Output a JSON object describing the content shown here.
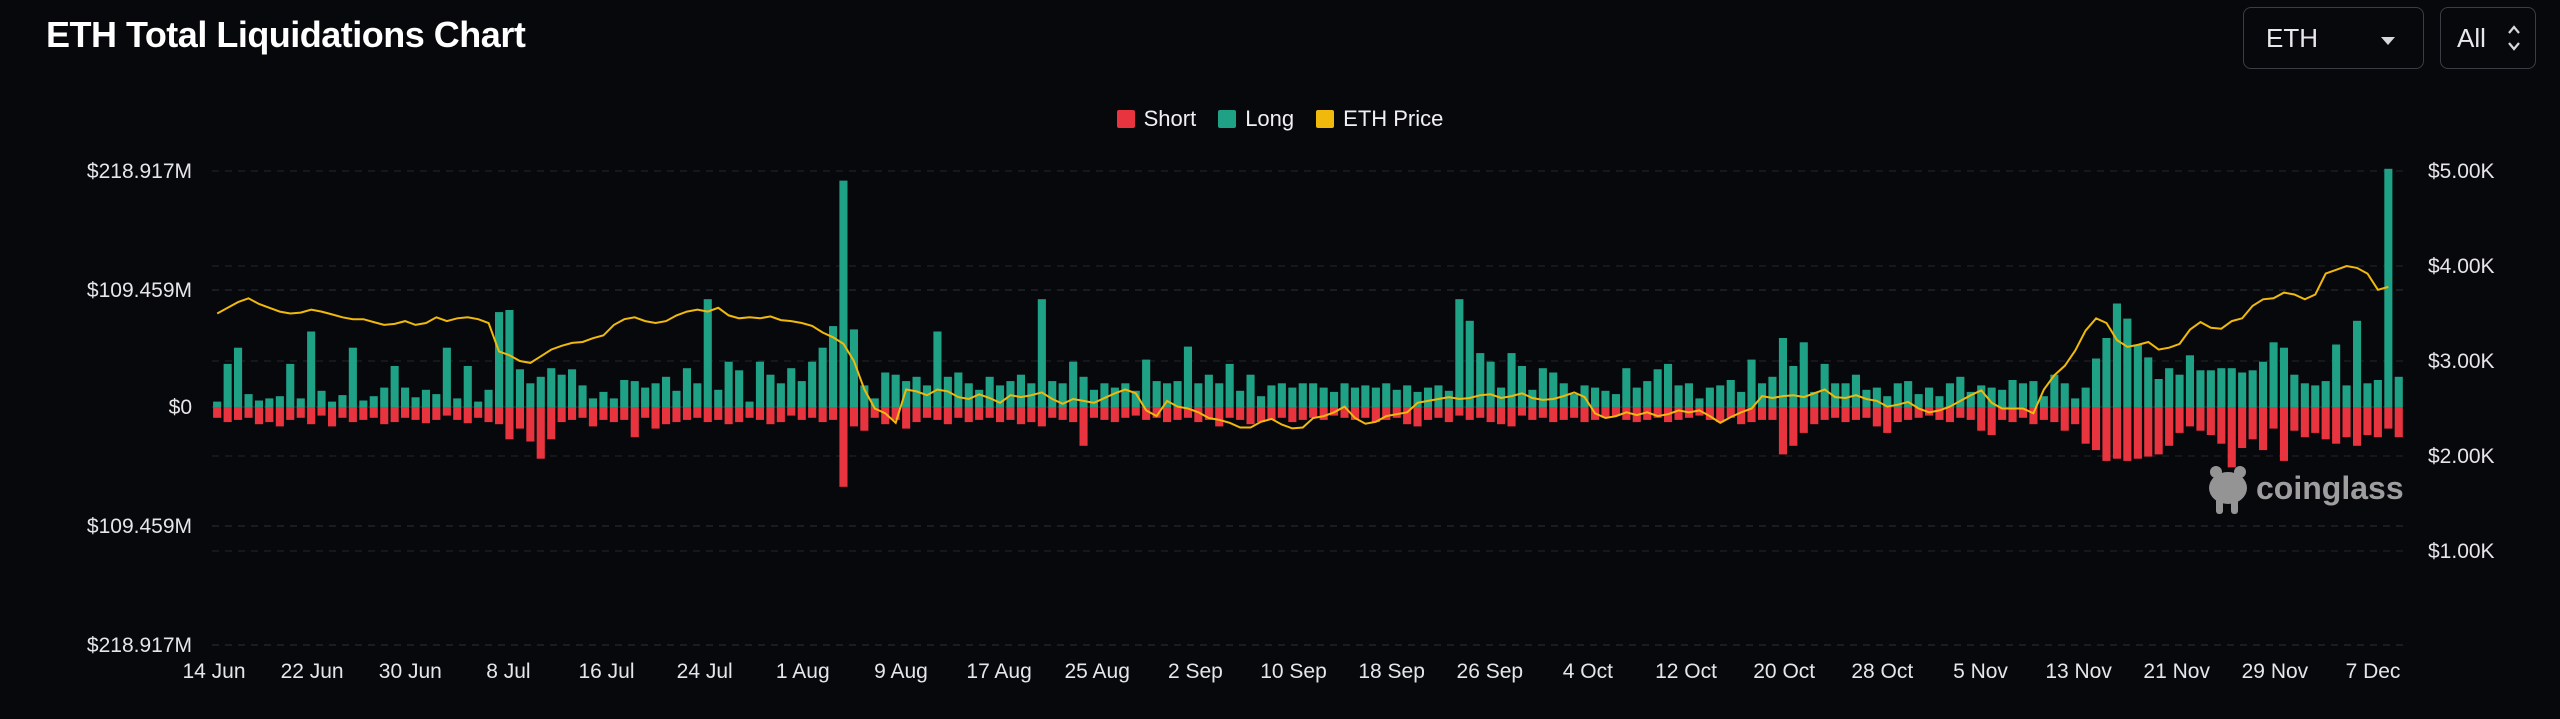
{
  "header": {
    "title": "ETH Total Liquidations Chart"
  },
  "controls": {
    "asset_select": {
      "value": "ETH",
      "icon": "chevron-down-icon"
    },
    "range_select": {
      "value": "All",
      "icon": "up-down-chevron-icon"
    }
  },
  "watermark": {
    "text": "coinglass",
    "icon": "coinglass-logo-icon"
  },
  "chart_data": {
    "type": "bar",
    "title": "ETH Total Liquidations Chart",
    "legend": [
      {
        "name": "Short",
        "color": "#e8343f"
      },
      {
        "name": "Long",
        "color": "#1fa186"
      },
      {
        "name": "ETH Price",
        "color": "#f0b90b"
      }
    ],
    "legend_position": "top-center",
    "grid": true,
    "x_tick_labels": [
      "14 Jun",
      "22 Jun",
      "30 Jun",
      "8 Jul",
      "16 Jul",
      "24 Jul",
      "1 Aug",
      "9 Aug",
      "17 Aug",
      "25 Aug",
      "2 Sep",
      "10 Sep",
      "18 Sep",
      "26 Sep",
      "4 Oct",
      "12 Oct",
      "20 Oct",
      "28 Oct",
      "5 Nov",
      "13 Nov",
      "21 Nov",
      "29 Nov",
      "7 Dec"
    ],
    "y_left_tick_labels": [
      "$218.917M",
      "$109.459M",
      "$0",
      "$109.459M",
      "$218.917M"
    ],
    "y_left_range": [
      -218.917,
      218.917
    ],
    "y_left_unit": "M USD (long above zero, short below zero)",
    "y_right_tick_labels": [
      "$5.00K",
      "$4.00K",
      "$3.00K",
      "$2.00K",
      "$1.00K"
    ],
    "y_right_range": [
      0,
      5000
    ],
    "start_date": "2024-06-14",
    "series": [
      {
        "name": "Long",
        "color": "#1fa186",
        "values": [
          5,
          40,
          55,
          12,
          6,
          8,
          10,
          40,
          8,
          70,
          15,
          5,
          11,
          55,
          6,
          10,
          18,
          38,
          18,
          9,
          16,
          12,
          55,
          8,
          38,
          5,
          16,
          88,
          90,
          35,
          22,
          28,
          36,
          30,
          35,
          20,
          8,
          14,
          8,
          25,
          24,
          18,
          22,
          28,
          15,
          36,
          22,
          100,
          16,
          42,
          34,
          5,
          42,
          30,
          22,
          36,
          24,
          42,
          55,
          75,
          210,
          72,
          20,
          8,
          32,
          30,
          24,
          28,
          20,
          70,
          28,
          32,
          22,
          16,
          28,
          20,
          24,
          30,
          22,
          100,
          24,
          22,
          42,
          28,
          16,
          22,
          18,
          22,
          15,
          44,
          24,
          22,
          24,
          56,
          22,
          30,
          22,
          40,
          15,
          30,
          10,
          20,
          22,
          18,
          22,
          22,
          18,
          14,
          22,
          18,
          20,
          18,
          22,
          16,
          20,
          14,
          18,
          20,
          15,
          100,
          80,
          50,
          42,
          18,
          50,
          38,
          16,
          36,
          32,
          22,
          12,
          20,
          18,
          15,
          12,
          36,
          18,
          24,
          35,
          40,
          20,
          22,
          8,
          18,
          20,
          25,
          14,
          44,
          22,
          28,
          64,
          38,
          60,
          14,
          40,
          22,
          22,
          30,
          16,
          18,
          10,
          22,
          24,
          12,
          18,
          10,
          22,
          28,
          14,
          20,
          18,
          16,
          25,
          22,
          24,
          10,
          30,
          22,
          8,
          18,
          45,
          64,
          96,
          82,
          58,
          46,
          26,
          36,
          30,
          48,
          34,
          34,
          36,
          36,
          32,
          34,
          42,
          60,
          55,
          30,
          22,
          20,
          24,
          58,
          20,
          80,
          22,
          25,
          221,
          28
        ]
      },
      {
        "name": "Short",
        "color": "#e8343f",
        "values": [
          -10,
          -14,
          -12,
          -10,
          -16,
          -14,
          -18,
          -12,
          -10,
          -16,
          -8,
          -18,
          -10,
          -14,
          -12,
          -10,
          -16,
          -14,
          -10,
          -12,
          -15,
          -12,
          -8,
          -12,
          -15,
          -10,
          -14,
          -16,
          -30,
          -20,
          -32,
          -48,
          -30,
          -14,
          -12,
          -10,
          -18,
          -12,
          -14,
          -12,
          -28,
          -10,
          -20,
          -16,
          -14,
          -12,
          -10,
          -14,
          -12,
          -16,
          -14,
          -10,
          -12,
          -16,
          -14,
          -8,
          -12,
          -10,
          -14,
          -12,
          -74,
          -18,
          -22,
          -10,
          -16,
          -12,
          -20,
          -14,
          -10,
          -12,
          -16,
          -10,
          -14,
          -12,
          -10,
          -14,
          -12,
          -16,
          -14,
          -18,
          -10,
          -12,
          -14,
          -36,
          -10,
          -12,
          -14,
          -10,
          -8,
          -12,
          -10,
          -14,
          -12,
          -10,
          -14,
          -12,
          -18,
          -10,
          -12,
          -16,
          -14,
          -12,
          -10,
          -14,
          -12,
          -10,
          -12,
          -8,
          -10,
          -12,
          -10,
          -14,
          -12,
          -10,
          -16,
          -18,
          -12,
          -10,
          -14,
          -8,
          -12,
          -10,
          -14,
          -16,
          -18,
          -8,
          -12,
          -10,
          -14,
          -12,
          -10,
          -14,
          -12,
          -10,
          -8,
          -12,
          -14,
          -12,
          -10,
          -14,
          -12,
          -10,
          -8,
          -12,
          -14,
          -10,
          -16,
          -14,
          -12,
          -12,
          -44,
          -36,
          -24,
          -16,
          -12,
          -10,
          -14,
          -12,
          -10,
          -18,
          -24,
          -14,
          -12,
          -10,
          -8,
          -12,
          -14,
          -10,
          -12,
          -22,
          -26,
          -12,
          -14,
          -10,
          -16,
          -12,
          -14,
          -22,
          -16,
          -34,
          -40,
          -50,
          -48,
          -50,
          -48,
          -46,
          -44,
          -36,
          -24,
          -18,
          -22,
          -26,
          -34,
          -56,
          -38,
          -30,
          -40,
          -20,
          -50,
          -22,
          -28,
          -24,
          -30,
          -34,
          -28,
          -36,
          -26,
          -28,
          -20,
          -28,
          -14,
          -10
        ]
      },
      {
        "name": "ETH Price",
        "color": "#f0b90b",
        "values": [
          3500,
          3560,
          3620,
          3660,
          3600,
          3560,
          3520,
          3500,
          3510,
          3540,
          3520,
          3490,
          3460,
          3440,
          3440,
          3410,
          3380,
          3390,
          3420,
          3380,
          3400,
          3460,
          3420,
          3450,
          3460,
          3440,
          3400,
          3100,
          3060,
          3000,
          2980,
          3050,
          3120,
          3160,
          3190,
          3200,
          3240,
          3270,
          3380,
          3440,
          3460,
          3420,
          3400,
          3420,
          3480,
          3520,
          3540,
          3520,
          3560,
          3480,
          3450,
          3460,
          3450,
          3470,
          3430,
          3420,
          3400,
          3370,
          3300,
          3250,
          3180,
          3000,
          2700,
          2500,
          2450,
          2350,
          2700,
          2680,
          2640,
          2700,
          2680,
          2620,
          2600,
          2650,
          2610,
          2560,
          2640,
          2620,
          2640,
          2670,
          2600,
          2550,
          2600,
          2580,
          2560,
          2610,
          2660,
          2700,
          2660,
          2480,
          2420,
          2580,
          2520,
          2500,
          2460,
          2400,
          2380,
          2350,
          2300,
          2300,
          2360,
          2390,
          2330,
          2290,
          2300,
          2400,
          2420,
          2460,
          2520,
          2400,
          2340,
          2360,
          2420,
          2440,
          2460,
          2560,
          2580,
          2600,
          2620,
          2600,
          2610,
          2640,
          2650,
          2610,
          2630,
          2660,
          2610,
          2590,
          2600,
          2630,
          2670,
          2620,
          2450,
          2400,
          2420,
          2460,
          2430,
          2460,
          2420,
          2440,
          2480,
          2460,
          2480,
          2420,
          2350,
          2410,
          2460,
          2500,
          2630,
          2610,
          2630,
          2640,
          2620,
          2660,
          2700,
          2620,
          2610,
          2640,
          2600,
          2580,
          2520,
          2540,
          2570,
          2500,
          2460,
          2480,
          2520,
          2580,
          2640,
          2690,
          2560,
          2500,
          2500,
          2500,
          2450,
          2700,
          2850,
          2950,
          3110,
          3320,
          3450,
          3400,
          3220,
          3150,
          3170,
          3200,
          3120,
          3140,
          3180,
          3330,
          3410,
          3350,
          3340,
          3420,
          3450,
          3580,
          3650,
          3660,
          3720,
          3700,
          3650,
          3700,
          3920,
          3960,
          4000,
          3980,
          3920,
          3750,
          3780
        ]
      }
    ]
  }
}
